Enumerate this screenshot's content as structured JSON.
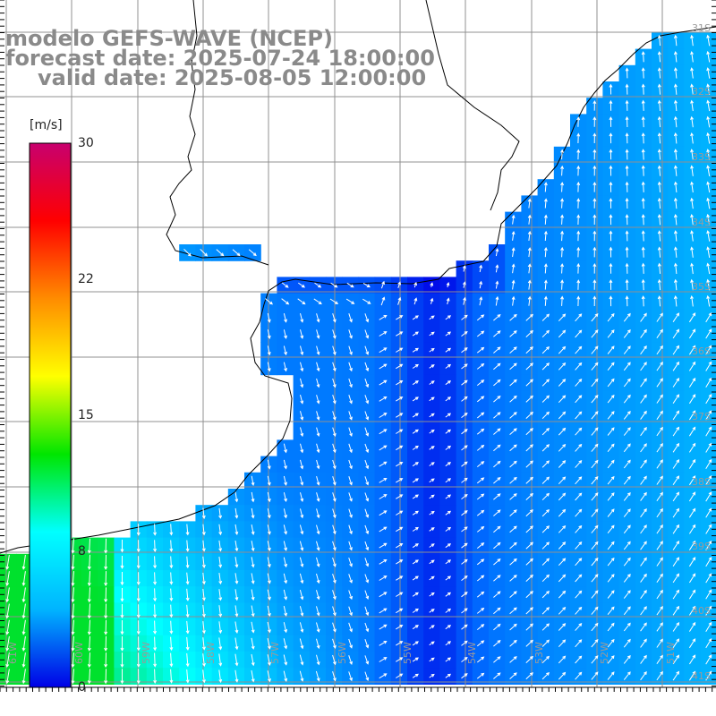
{
  "title": {
    "model": "modelo GEFS-WAVE (NCEP)",
    "forecast": "forecast date: 2025-07-24 18:00:00",
    "valid": "valid date: 2025-08-05 12:00:00"
  },
  "colorbar": {
    "unit": "[m/s]",
    "min": 0,
    "max": 30,
    "ticks": [
      "30",
      "22",
      "15",
      "8",
      "0"
    ],
    "tick_values": [
      30,
      22,
      15,
      8,
      0
    ],
    "colors": [
      "#0000e6",
      "#00b4ff",
      "#00ffff",
      "#00e600",
      "#ffff00",
      "#ff8c00",
      "#ff0000",
      "#c8006e"
    ]
  },
  "lat_labels": [
    "31S",
    "32S",
    "33S",
    "34S",
    "35S",
    "36S",
    "37S",
    "38S",
    "39S",
    "40S",
    "41S"
  ],
  "lat_values": [
    -31,
    -32,
    -33,
    -34,
    -35,
    -36,
    -37,
    -38,
    -39,
    -40,
    -41
  ],
  "lon_labels": [
    "61W",
    "60W",
    "59W",
    "58W",
    "57W",
    "56W",
    "55W",
    "54W",
    "53W",
    "52W",
    "51W"
  ],
  "lon_values": [
    -61,
    -60,
    -59,
    -58,
    -57,
    -56,
    -55,
    -54,
    -53,
    -52,
    -51
  ],
  "colors": {
    "land": "#ffffff",
    "grid": "#909090",
    "coast": "#000000",
    "arrow": "#ffffff",
    "title": "#8a8a8a"
  }
}
